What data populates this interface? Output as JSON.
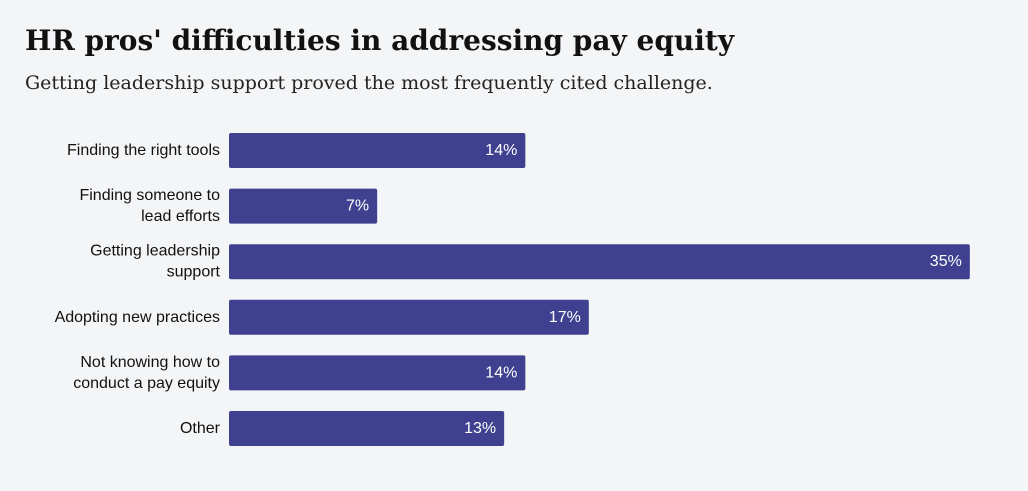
{
  "title": "HR pros' difficulties in addressing pay equity",
  "subtitle": "Getting leadership support proved the most frequently cited challenge.",
  "colors": {
    "bar": "#3f4190",
    "background": "#f4f5f7",
    "value_label": "#ffffff"
  },
  "chart_data": {
    "type": "bar",
    "orientation": "horizontal",
    "categories": [
      [
        "Finding the right tools"
      ],
      [
        "Finding someone to",
        "lead efforts"
      ],
      [
        "Getting leadership",
        "support"
      ],
      [
        "Adopting new practices"
      ],
      [
        "Not knowing how to",
        "conduct a pay equity"
      ],
      [
        "Other"
      ]
    ],
    "values": [
      14,
      7,
      35,
      17,
      14,
      13
    ],
    "value_labels": [
      "14%",
      "7%",
      "35%",
      "17%",
      "14%",
      "13%"
    ],
    "xlim": [
      0,
      36
    ],
    "grid": false,
    "legend": "none"
  }
}
